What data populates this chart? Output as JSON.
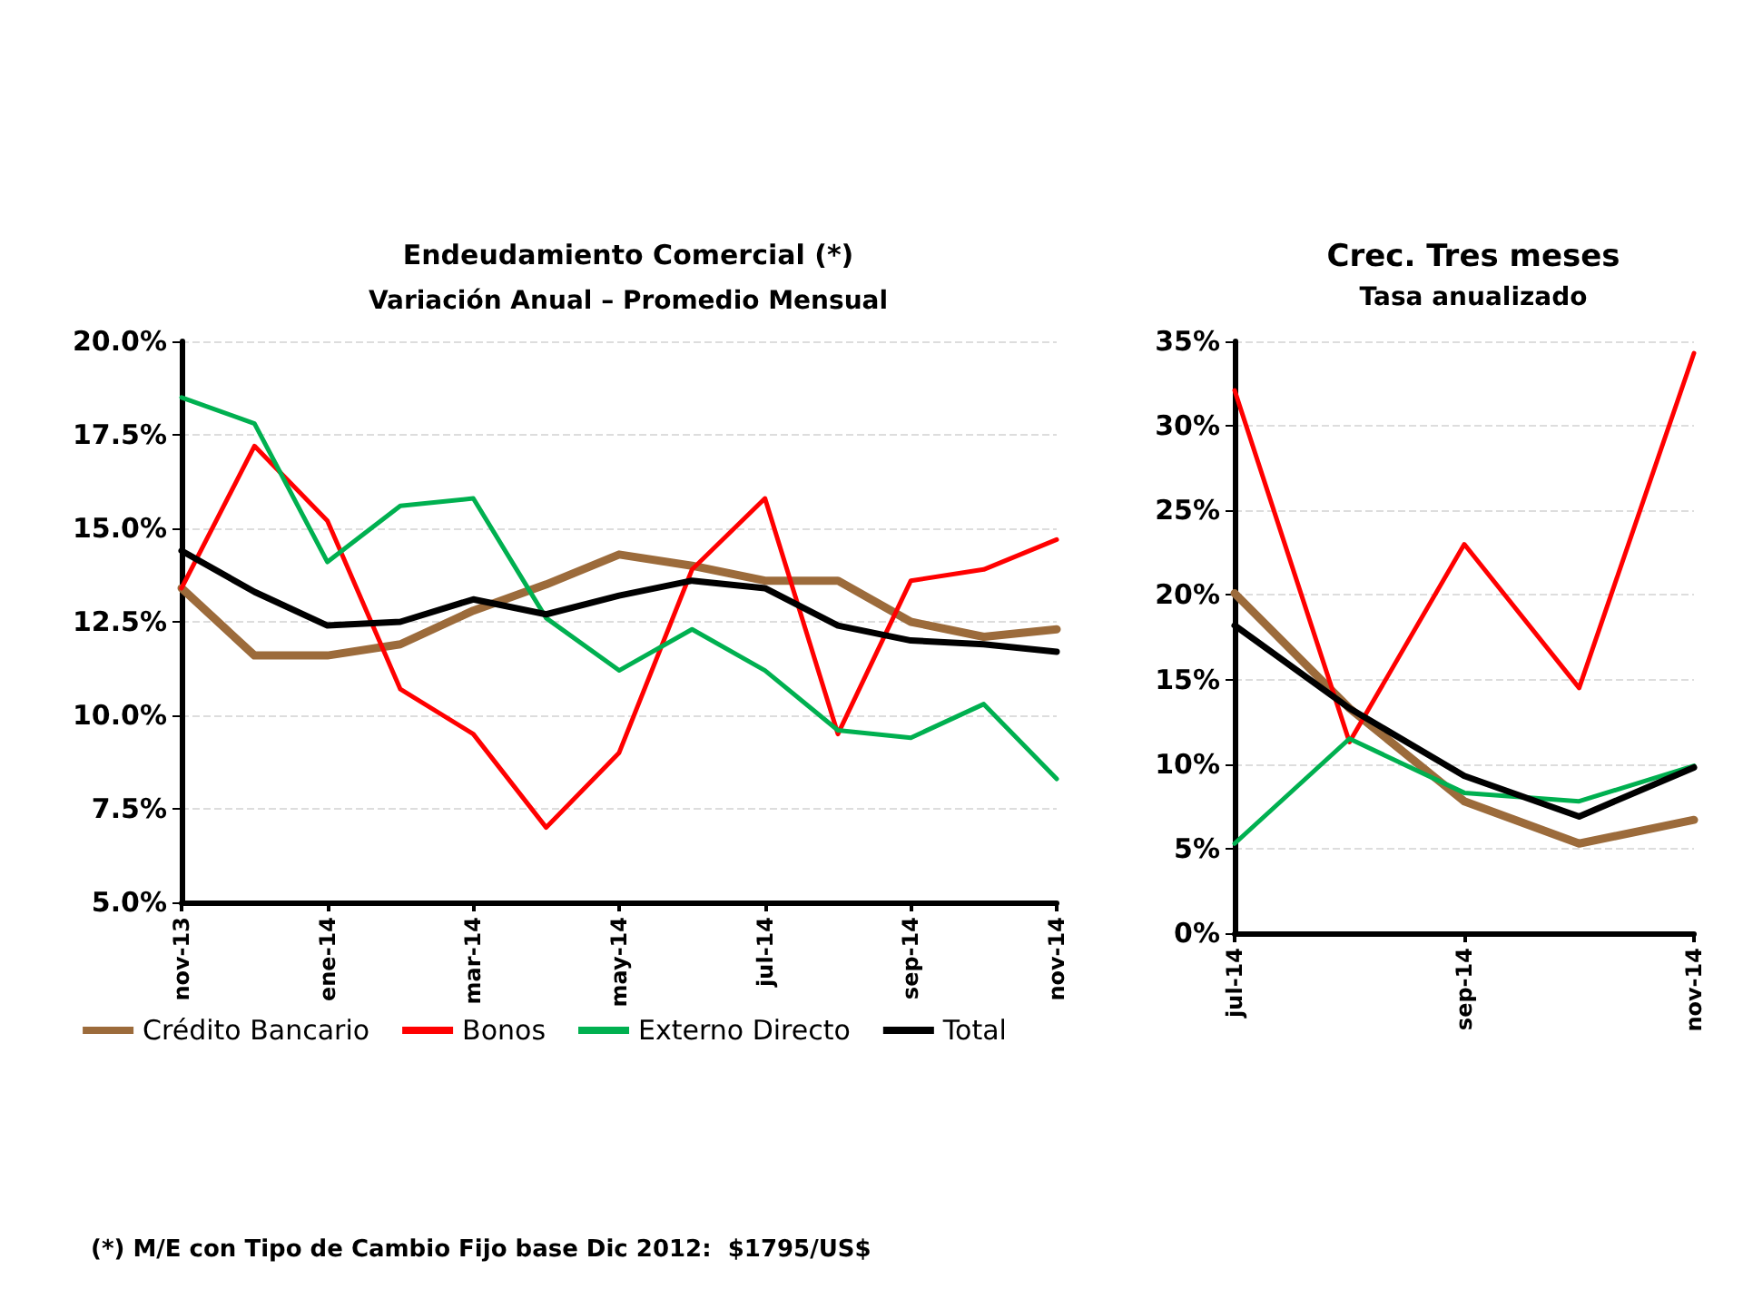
{
  "chart_data": [
    {
      "type": "line",
      "title": "Endeudamiento Comercial (*)",
      "subtitle": "Variación Anual – Promedio Mensual",
      "categories": [
        "nov-13",
        null,
        "ene-14",
        null,
        "mar-14",
        null,
        "may-14",
        null,
        "jul-14",
        null,
        "sep-14",
        null,
        "nov-14"
      ],
      "series": [
        {
          "name": "Crédito Bancario",
          "color": "#9c6b3b",
          "values": [
            13.4,
            11.6,
            11.6,
            11.9,
            12.8,
            13.5,
            14.3,
            14.0,
            13.6,
            13.6,
            12.5,
            12.1,
            12.3
          ]
        },
        {
          "name": "Bonos",
          "color": "#ff0000",
          "values": [
            13.4,
            17.2,
            15.2,
            10.7,
            9.5,
            7.0,
            9.0,
            13.9,
            15.8,
            9.5,
            13.6,
            13.9,
            14.7
          ]
        },
        {
          "name": "Externo Directo",
          "color": "#00b050",
          "values": [
            18.5,
            17.8,
            14.1,
            15.6,
            15.8,
            12.6,
            11.2,
            12.3,
            11.2,
            9.6,
            9.4,
            10.3,
            8.3
          ]
        },
        {
          "name": "Total",
          "color": "#000000",
          "values": [
            14.4,
            13.3,
            12.4,
            12.5,
            13.1,
            12.7,
            13.2,
            13.6,
            13.4,
            12.4,
            12.0,
            11.9,
            11.7
          ]
        }
      ],
      "ylim": [
        5,
        20
      ],
      "yticks": [
        {
          "value": 5,
          "label": "5.0%"
        },
        {
          "value": 7.5,
          "label": "7.5%"
        },
        {
          "value": 10,
          "label": "10.0%"
        },
        {
          "value": 12.5,
          "label": "12.5%"
        },
        {
          "value": 15,
          "label": "15.0%"
        },
        {
          "value": 17.5,
          "label": "17.5%"
        },
        {
          "value": 20,
          "label": "20.0%"
        }
      ],
      "grid": "y",
      "legend": "bottom",
      "marker": "none",
      "line_style": "solid",
      "annotations": [
        "(*) M/E con Tipo de Cambio Fijo base Dic 2012:  $1795/US$"
      ]
    },
    {
      "type": "line",
      "title": "Crec. Tres meses",
      "subtitle": "Tasa anualizado",
      "categories": [
        "jul-14",
        null,
        "sep-14",
        null,
        "nov-14"
      ],
      "series": [
        {
          "color": "#9c6b3b",
          "values": [
            20.1,
            13.3,
            7.8,
            5.3,
            6.7
          ]
        },
        {
          "color": "#ff0000",
          "values": [
            32.1,
            11.3,
            23.0,
            14.5,
            34.3
          ]
        },
        {
          "color": "#00b050",
          "values": [
            5.3,
            11.5,
            8.3,
            7.8,
            9.9
          ]
        },
        {
          "color": "#000000",
          "values": [
            18.2,
            13.3,
            9.3,
            6.9,
            9.8
          ]
        }
      ],
      "ylim": [
        0,
        35
      ],
      "yticks": [
        {
          "value": 0,
          "label": "0%"
        },
        {
          "value": 5,
          "label": "5%"
        },
        {
          "value": 10,
          "label": "10%"
        },
        {
          "value": 15,
          "label": "15%"
        },
        {
          "value": 20,
          "label": "20%"
        },
        {
          "value": 25,
          "label": "25%"
        },
        {
          "value": 30,
          "label": "30%"
        },
        {
          "value": 35,
          "label": "35%"
        }
      ],
      "grid": "y",
      "legend": false,
      "marker": "none",
      "line_style": "solid"
    }
  ]
}
